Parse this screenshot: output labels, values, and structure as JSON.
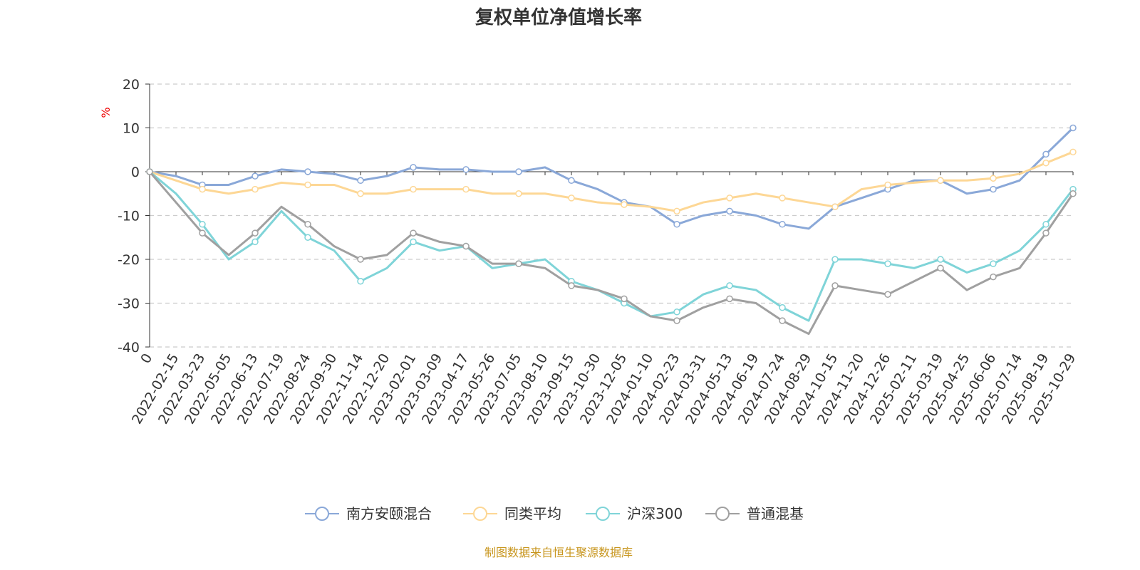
{
  "chart_data": {
    "type": "line",
    "title": "复权单位净值增长率",
    "ylabel": "%",
    "xlabel": "",
    "ylim": [
      -40,
      20
    ],
    "yticks": [
      20,
      10,
      0,
      -10,
      -20,
      -30,
      -40
    ],
    "grid": true,
    "legend_position": "bottom",
    "x": [
      "0",
      "2022-02-15",
      "2022-03-23",
      "2022-05-05",
      "2022-06-13",
      "2022-07-19",
      "2022-08-24",
      "2022-09-30",
      "2022-11-14",
      "2022-12-20",
      "2023-02-01",
      "2023-03-09",
      "2023-04-17",
      "2023-05-26",
      "2023-07-05",
      "2023-08-10",
      "2023-09-15",
      "2023-10-30",
      "2023-12-05",
      "2024-01-10",
      "2024-02-23",
      "2024-03-31",
      "2024-05-13",
      "2024-06-19",
      "2024-07-24",
      "2024-08-29",
      "2024-10-15",
      "2024-11-20",
      "2024-12-26",
      "2025-02-11",
      "2025-03-19",
      "2025-04-25",
      "2025-06-06",
      "2025-07-14",
      "2025-08-19",
      "2025-10-29"
    ],
    "series": [
      {
        "name": "南方安颐混合",
        "color": "#8aa8d8",
        "values": [
          0,
          -1,
          -3,
          -3,
          -1,
          0.5,
          0,
          -0.5,
          -2,
          -1,
          1,
          0.5,
          0.5,
          0,
          0,
          1,
          -2,
          -4,
          -7,
          -8,
          -12,
          -10,
          -9,
          -10,
          -12,
          -13,
          -8,
          -6,
          -4,
          -2,
          -2,
          -5,
          -4,
          -2,
          4,
          10
        ]
      },
      {
        "name": "同类平均",
        "color": "#fdd795",
        "values": [
          0,
          -2,
          -4,
          -5,
          -4,
          -2.5,
          -3,
          -3,
          -5,
          -5,
          -4,
          -4,
          -4,
          -5,
          -5,
          -5,
          -6,
          -7,
          -7.5,
          -8,
          -9,
          -7,
          -6,
          -5,
          -6,
          -7,
          -8,
          -4,
          -3,
          -2.5,
          -2,
          -2,
          -1.5,
          -0.5,
          2,
          4.5
        ]
      },
      {
        "name": "沪深300",
        "color": "#7fd4d8",
        "values": [
          0,
          -5,
          -12,
          -20,
          -16,
          -9,
          -15,
          -18,
          -25,
          -22,
          -16,
          -18,
          -17,
          -22,
          -21,
          -20,
          -25,
          -27,
          -30,
          -33,
          -32,
          -28,
          -26,
          -27,
          -31,
          -34,
          -20,
          -20,
          -21,
          -22,
          -20,
          -23,
          -21,
          -18,
          -12,
          -4
        ]
      },
      {
        "name": "普通混基",
        "color": "#a0a0a0",
        "values": [
          0,
          -7,
          -14,
          -19,
          -14,
          -8,
          -12,
          -17,
          -20,
          -19,
          -14,
          -16,
          -17,
          -21,
          -21,
          -22,
          -26,
          -27,
          -29,
          -33,
          -34,
          -31,
          -29,
          -30,
          -34,
          -37,
          -26,
          -27,
          -28,
          -25,
          -22,
          -27,
          -24,
          -22,
          -14,
          -5
        ]
      }
    ],
    "source": "制图数据来自恒生聚源数据库"
  }
}
